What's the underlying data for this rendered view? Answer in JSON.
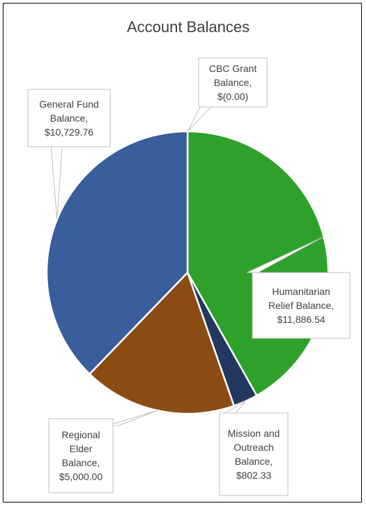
{
  "chart_data": {
    "type": "pie",
    "title": "Account Balances",
    "slices": [
      {
        "label": [
          "CBC Grant",
          "Balance,",
          "$(0.00)"
        ],
        "value": 0.0,
        "color": "#2e8b2e"
      },
      {
        "label": [
          "Humanitarian",
          "Relief Balance,",
          "$11,886.54"
        ],
        "value": 11886.54,
        "color": "#2ea12a"
      },
      {
        "label": [
          "Mission and",
          "Outreach",
          "Balance,",
          "$802.33"
        ],
        "value": 802.33,
        "color": "#22385e"
      },
      {
        "label": [
          "Regional",
          "Elder",
          "Balance,",
          "$5,000.00"
        ],
        "value": 5000.0,
        "color": "#8b4c14"
      },
      {
        "label": [
          "General Fund",
          "Balance,",
          "$10,729.76"
        ],
        "value": 10729.76,
        "color": "#3a5d9b"
      }
    ]
  }
}
